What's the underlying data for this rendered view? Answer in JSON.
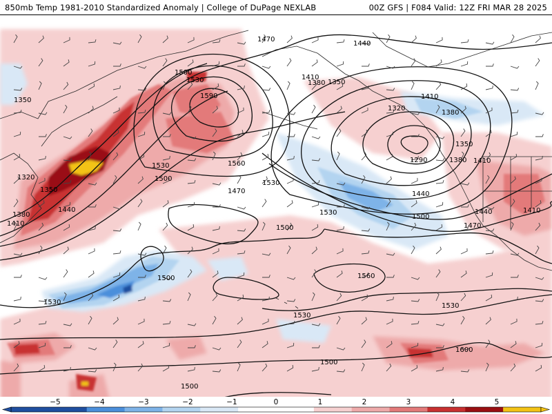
{
  "header": {
    "title_left": "850mb Temp 1981-2010 Standardized Anomaly | College of DuPage NEXLAB",
    "title_right": "00Z GFS | F084 Valid: 12Z FRI MAR 28 2025"
  },
  "colors": {
    "anom_pos_1": "#f6d0d0",
    "anom_pos_2": "#eeaaaa",
    "anom_pos_3": "#e37a7a",
    "anom_pos_4": "#c83030",
    "anom_pos_5": "#9a0f12",
    "anom_pos_6": "#f3c316",
    "anom_neg_1": "#d9e8f6",
    "anom_neg_2": "#b3d4f0",
    "anom_neg_3": "#7eb3e8",
    "anom_neg_4": "#4b8fdb",
    "anom_neg_5": "#1f4fa0",
    "contour": "#111111",
    "coastline": "#2a2a2a"
  },
  "contour_labels": [
    {
      "text": "1350"
    },
    {
      "text": "1470"
    },
    {
      "text": "1440"
    },
    {
      "text": "1500"
    },
    {
      "text": "1530"
    },
    {
      "text": "1590"
    },
    {
      "text": "1410"
    },
    {
      "text": "1380"
    },
    {
      "text": "1350"
    },
    {
      "text": "1320"
    },
    {
      "text": "1410"
    },
    {
      "text": "1380"
    },
    {
      "text": "1350"
    },
    {
      "text": "1290"
    },
    {
      "text": "1380"
    },
    {
      "text": "1410"
    },
    {
      "text": "1320"
    },
    {
      "text": "1350"
    },
    {
      "text": "1380"
    },
    {
      "text": "1410"
    },
    {
      "text": "1440"
    },
    {
      "text": "1530"
    },
    {
      "text": "1500"
    },
    {
      "text": "1560"
    },
    {
      "text": "1470"
    },
    {
      "text": "1530"
    },
    {
      "text": "1440"
    },
    {
      "text": "1500"
    },
    {
      "text": "1440"
    },
    {
      "text": "1470"
    },
    {
      "text": "1530"
    },
    {
      "text": "1500"
    },
    {
      "text": "1500"
    },
    {
      "text": "1560"
    },
    {
      "text": "1530"
    },
    {
      "text": "1530"
    },
    {
      "text": "1530"
    },
    {
      "text": "1500"
    },
    {
      "text": "1600"
    },
    {
      "text": "1500"
    },
    {
      "text": "1410"
    }
  ],
  "legend": {
    "ticks": [
      "−5",
      "−4",
      "−3",
      "−2",
      "−1",
      "0",
      "1",
      "2",
      "3",
      "4",
      "5"
    ]
  }
}
